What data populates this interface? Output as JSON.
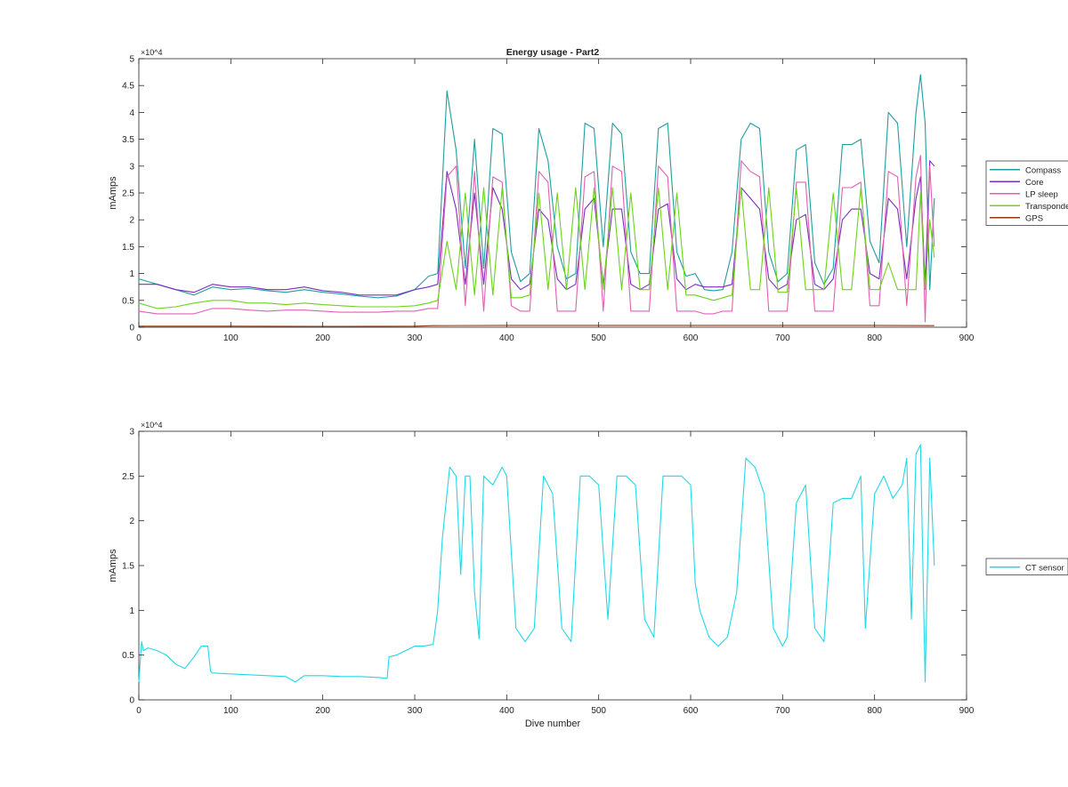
{
  "figure": {
    "background": "#ffffff"
  },
  "chart_data": [
    {
      "type": "line",
      "title": "Energy usage - Part2",
      "xlabel": "",
      "ylabel": "mAmps",
      "xlim": [
        0,
        900
      ],
      "ylim": [
        0,
        50000
      ],
      "y_exponent": "×10^4",
      "x_ticks": [
        0,
        100,
        200,
        300,
        400,
        500,
        600,
        700,
        800,
        900
      ],
      "x_tick_labels": [
        "0",
        "100",
        "200",
        "300",
        "400",
        "500",
        "600",
        "700",
        "800",
        "900"
      ],
      "y_ticks": [
        0,
        5000,
        10000,
        15000,
        20000,
        25000,
        30000,
        35000,
        40000,
        45000,
        50000
      ],
      "y_tick_labels": [
        "0",
        "0.5",
        "1",
        "1.5",
        "2",
        "2.5",
        "3",
        "3.5",
        "4",
        "4.5",
        "5"
      ],
      "grid": false,
      "legend": "outside-right",
      "series": [
        {
          "name": "Compass",
          "color": "#1f9e9e",
          "x": [
            0,
            20,
            40,
            60,
            80,
            100,
            120,
            140,
            160,
            180,
            200,
            220,
            240,
            260,
            280,
            300,
            315,
            325,
            335,
            345,
            355,
            365,
            375,
            385,
            395,
            405,
            415,
            425,
            435,
            445,
            455,
            465,
            475,
            485,
            495,
            505,
            515,
            525,
            535,
            545,
            555,
            565,
            575,
            585,
            595,
            605,
            615,
            625,
            635,
            645,
            655,
            665,
            675,
            685,
            695,
            705,
            715,
            725,
            735,
            745,
            755,
            765,
            775,
            785,
            795,
            805,
            815,
            825,
            835,
            845,
            850,
            855,
            860,
            865
          ],
          "values": [
            9000,
            8000,
            7000,
            6000,
            7500,
            7000,
            7200,
            6800,
            6500,
            7000,
            6500,
            6200,
            5800,
            5500,
            5800,
            7000,
            9500,
            10000,
            44000,
            33000,
            11000,
            35000,
            11000,
            37000,
            36000,
            14000,
            8500,
            10000,
            37000,
            31000,
            15000,
            9000,
            10000,
            38000,
            37000,
            15000,
            38000,
            36000,
            14000,
            10000,
            10000,
            37000,
            38000,
            14000,
            9500,
            10000,
            7000,
            6800,
            7000,
            14000,
            35000,
            38000,
            37000,
            14000,
            8500,
            10000,
            33000,
            34000,
            12000,
            8000,
            11000,
            34000,
            34000,
            35000,
            16000,
            12000,
            40000,
            38000,
            15000,
            40000,
            47000,
            38000,
            7000,
            24000
          ]
        },
        {
          "name": "Core",
          "color": "#7a2ec0",
          "x": [
            0,
            20,
            40,
            60,
            80,
            100,
            120,
            140,
            160,
            180,
            200,
            220,
            240,
            260,
            280,
            300,
            315,
            325,
            335,
            345,
            355,
            365,
            375,
            385,
            395,
            405,
            415,
            425,
            435,
            445,
            455,
            465,
            475,
            485,
            495,
            505,
            515,
            525,
            535,
            545,
            555,
            565,
            575,
            585,
            595,
            605,
            615,
            625,
            635,
            645,
            655,
            665,
            675,
            685,
            695,
            705,
            715,
            725,
            735,
            745,
            755,
            765,
            775,
            785,
            795,
            805,
            815,
            825,
            835,
            845,
            850,
            855,
            860,
            865
          ],
          "values": [
            8000,
            8000,
            7000,
            6500,
            8000,
            7500,
            7500,
            7000,
            7000,
            7500,
            6800,
            6500,
            6000,
            6000,
            6000,
            7000,
            7500,
            8000,
            29000,
            22000,
            8000,
            25000,
            8000,
            26000,
            22000,
            9000,
            7000,
            8000,
            22000,
            20000,
            9000,
            7000,
            8000,
            22000,
            24000,
            8000,
            22000,
            22000,
            8000,
            7000,
            8000,
            22000,
            23000,
            9000,
            7000,
            8000,
            7500,
            7500,
            7500,
            8000,
            26000,
            24000,
            22000,
            9000,
            7000,
            8000,
            20000,
            21000,
            8000,
            7000,
            9000,
            20000,
            22000,
            22000,
            10000,
            9000,
            24000,
            22000,
            9000,
            24000,
            28000,
            8000,
            31000,
            30000
          ]
        },
        {
          "name": "LP sleep",
          "color": "#e060b0",
          "x": [
            0,
            20,
            40,
            60,
            80,
            100,
            120,
            140,
            160,
            180,
            200,
            220,
            240,
            260,
            280,
            300,
            315,
            325,
            335,
            345,
            355,
            365,
            375,
            385,
            395,
            405,
            415,
            425,
            435,
            445,
            455,
            465,
            475,
            485,
            495,
            505,
            515,
            525,
            535,
            545,
            555,
            565,
            575,
            585,
            595,
            605,
            615,
            625,
            635,
            645,
            655,
            665,
            675,
            685,
            695,
            705,
            715,
            725,
            735,
            745,
            755,
            765,
            775,
            785,
            795,
            805,
            815,
            825,
            835,
            845,
            850,
            855,
            860,
            865
          ],
          "values": [
            3000,
            2500,
            2500,
            2500,
            3500,
            3500,
            3200,
            3000,
            3200,
            3200,
            3000,
            2800,
            2800,
            2800,
            3000,
            3000,
            3500,
            3500,
            28000,
            30000,
            4000,
            29000,
            3000,
            28000,
            27000,
            4000,
            3000,
            3000,
            29000,
            27000,
            3000,
            3000,
            3000,
            28000,
            29000,
            3000,
            30000,
            29000,
            3000,
            3000,
            3000,
            30000,
            28000,
            3000,
            3000,
            3000,
            2500,
            2500,
            3000,
            3000,
            31000,
            29000,
            28000,
            3000,
            3000,
            3000,
            27000,
            27000,
            3000,
            3000,
            3000,
            26000,
            26000,
            27000,
            4000,
            4000,
            29000,
            28000,
            4000,
            28000,
            32000,
            1000,
            30000,
            15000
          ]
        },
        {
          "name": "Transponder",
          "color": "#6cd31a",
          "x": [
            0,
            20,
            40,
            60,
            80,
            100,
            120,
            140,
            160,
            180,
            200,
            220,
            240,
            260,
            280,
            300,
            315,
            325,
            335,
            345,
            355,
            365,
            375,
            385,
            395,
            405,
            415,
            425,
            435,
            445,
            455,
            465,
            475,
            485,
            495,
            505,
            515,
            525,
            535,
            545,
            555,
            565,
            575,
            585,
            595,
            605,
            615,
            625,
            635,
            645,
            655,
            665,
            675,
            685,
            695,
            705,
            715,
            725,
            735,
            745,
            755,
            765,
            775,
            785,
            795,
            805,
            815,
            825,
            835,
            845,
            850,
            855,
            860,
            865
          ],
          "values": [
            4500,
            3500,
            3800,
            4500,
            5000,
            5000,
            4500,
            4500,
            4200,
            4500,
            4200,
            4000,
            3800,
            3800,
            3800,
            4000,
            4500,
            5000,
            16000,
            7000,
            25000,
            6000,
            26000,
            6000,
            26000,
            5500,
            5500,
            6000,
            25000,
            7000,
            25000,
            7000,
            26000,
            7000,
            26000,
            7000,
            26000,
            7000,
            25000,
            7000,
            7000,
            26000,
            7000,
            25000,
            6000,
            6000,
            5500,
            5000,
            5500,
            6000,
            26000,
            7000,
            7000,
            26000,
            6500,
            6500,
            26000,
            7000,
            7000,
            7000,
            25000,
            7000,
            7000,
            26000,
            7000,
            7000,
            12000,
            7000,
            7000,
            7000,
            25000,
            7000,
            20000,
            13000
          ]
        },
        {
          "name": "GPS",
          "color": "#8b3a12",
          "x": [
            0,
            100,
            200,
            300,
            320,
            400,
            500,
            600,
            700,
            800,
            865
          ],
          "values": [
            200,
            200,
            150,
            200,
            300,
            350,
            350,
            350,
            350,
            350,
            300
          ]
        }
      ]
    },
    {
      "type": "line",
      "title": "",
      "xlabel": "Dive number",
      "ylabel": "mAmps",
      "xlim": [
        0,
        900
      ],
      "ylim": [
        0,
        30000
      ],
      "y_exponent": "×10^4",
      "x_ticks": [
        0,
        100,
        200,
        300,
        400,
        500,
        600,
        700,
        800,
        900
      ],
      "x_tick_labels": [
        "0",
        "100",
        "200",
        "300",
        "400",
        "500",
        "600",
        "700",
        "800",
        "900"
      ],
      "y_ticks": [
        0,
        5000,
        10000,
        15000,
        20000,
        25000,
        30000
      ],
      "y_tick_labels": [
        "0",
        "0.5",
        "1",
        "1.5",
        "2",
        "2.5",
        "3"
      ],
      "grid": false,
      "legend": "outside-right",
      "series": [
        {
          "name": "CT sensor",
          "color": "#22d8e8",
          "x": [
            0,
            3,
            5,
            10,
            20,
            30,
            40,
            50,
            60,
            68,
            75,
            78,
            80,
            100,
            120,
            140,
            160,
            170,
            180,
            200,
            220,
            240,
            260,
            270,
            272,
            280,
            290,
            300,
            310,
            320,
            325,
            330,
            338,
            345,
            350,
            355,
            360,
            365,
            370,
            375,
            385,
            395,
            400,
            410,
            420,
            430,
            440,
            450,
            460,
            470,
            480,
            490,
            500,
            510,
            520,
            530,
            540,
            550,
            560,
            570,
            580,
            590,
            600,
            605,
            610,
            620,
            630,
            640,
            650,
            660,
            670,
            680,
            690,
            700,
            705,
            715,
            725,
            735,
            745,
            755,
            765,
            775,
            785,
            790,
            800,
            810,
            820,
            830,
            835,
            840,
            845,
            850,
            855,
            860,
            865
          ],
          "values": [
            2000,
            6500,
            5500,
            5800,
            5500,
            5000,
            4000,
            3500,
            4800,
            6000,
            6000,
            3200,
            3000,
            2900,
            2800,
            2700,
            2600,
            2000,
            2700,
            2700,
            2600,
            2600,
            2500,
            2400,
            4800,
            5000,
            5500,
            6000,
            6000,
            6200,
            10000,
            18000,
            26000,
            25000,
            14000,
            25000,
            25000,
            12000,
            6800,
            25000,
            24000,
            26000,
            25000,
            8000,
            6500,
            8000,
            25000,
            23000,
            8000,
            6500,
            25000,
            25000,
            24000,
            9000,
            25000,
            25000,
            24000,
            9000,
            7000,
            25000,
            25000,
            25000,
            24000,
            13000,
            10000,
            7000,
            6000,
            7000,
            12000,
            27000,
            26000,
            23000,
            8000,
            6000,
            7000,
            22000,
            24000,
            8000,
            6500,
            22000,
            22500,
            22500,
            25000,
            8000,
            23000,
            25000,
            22500,
            24000,
            27000,
            9000,
            27500,
            28500,
            2000,
            27000,
            15000
          ]
        }
      ]
    }
  ]
}
